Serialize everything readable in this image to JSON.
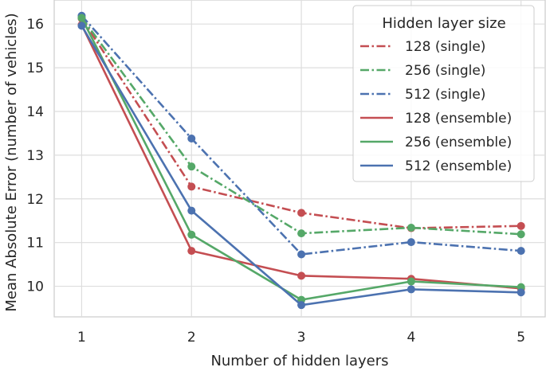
{
  "chart_data": {
    "type": "line",
    "xlabel": "Number of hidden layers",
    "ylabel": "Mean Absolute Error (number of vehicles)",
    "x": [
      1,
      2,
      3,
      4,
      5
    ],
    "x_ticks": [
      "1",
      "2",
      "3",
      "4",
      "5"
    ],
    "y_ticks": [
      "10",
      "11",
      "12",
      "13",
      "14",
      "15",
      "16"
    ],
    "xlim": [
      0.75,
      5.22
    ],
    "ylim": [
      9.3,
      16.55
    ],
    "grid": true,
    "legend": {
      "title": "Hidden layer size",
      "placement": "top-right"
    },
    "series": [
      {
        "name": "128 (single)",
        "color": "#c44e52",
        "style": "dashdot",
        "values": [
          16.13,
          12.28,
          11.68,
          11.33,
          11.38
        ]
      },
      {
        "name": "256 (single)",
        "color": "#55a868",
        "style": "dashdot",
        "values": [
          16.15,
          12.74,
          11.21,
          11.34,
          11.19
        ]
      },
      {
        "name": "512 (single)",
        "color": "#4c72b0",
        "style": "dashdot",
        "values": [
          16.19,
          13.38,
          10.73,
          11.01,
          10.81
        ]
      },
      {
        "name": "128 (ensemble)",
        "color": "#c44e52",
        "style": "solid",
        "values": [
          15.98,
          10.81,
          10.24,
          10.17,
          9.95
        ]
      },
      {
        "name": "256 (ensemble)",
        "color": "#55a868",
        "style": "solid",
        "values": [
          16.14,
          11.18,
          9.69,
          10.11,
          9.98
        ]
      },
      {
        "name": "512 (ensemble)",
        "color": "#4c72b0",
        "style": "solid",
        "values": [
          15.96,
          11.73,
          9.57,
          9.93,
          9.86
        ]
      }
    ]
  }
}
